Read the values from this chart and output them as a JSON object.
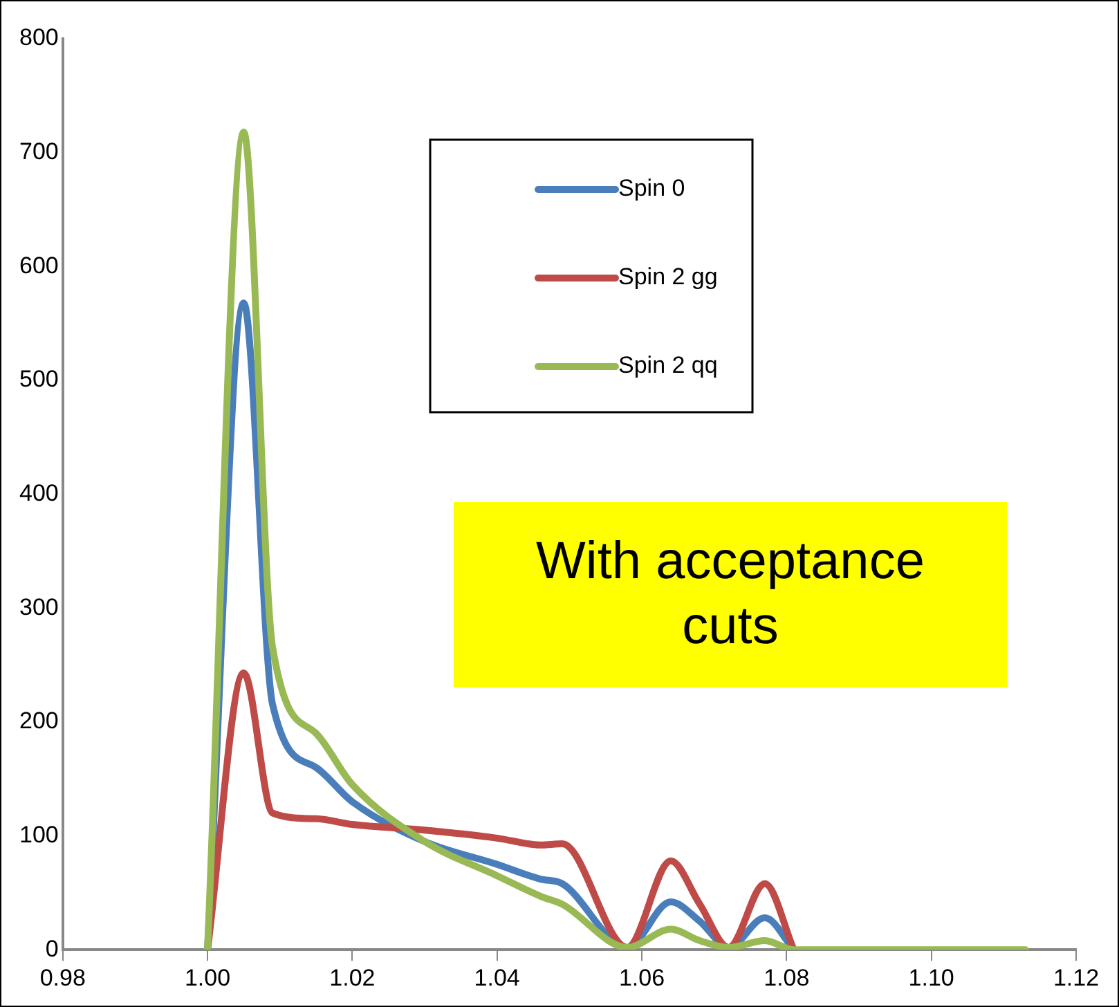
{
  "chart_data": {
    "type": "line",
    "annotations": [
      "With acceptance cuts"
    ],
    "legend": "top",
    "grid": false,
    "marker": "none",
    "line_style": "solid",
    "xlim": [
      0.98,
      1.12
    ],
    "xticks": [
      {
        "value": 0.98,
        "label": "0.98"
      },
      {
        "value": 1,
        "label": "1.00"
      },
      {
        "value": 1.02,
        "label": "1.02"
      },
      {
        "value": 1.04,
        "label": "1.04"
      },
      {
        "value": 1.06,
        "label": "1.06"
      },
      {
        "value": 1.08,
        "label": "1.08"
      },
      {
        "value": 1.1,
        "label": "1.10"
      },
      {
        "value": 1.12,
        "label": "1.12"
      }
    ],
    "ylim": [
      0,
      800
    ],
    "yticks": [
      0,
      100,
      200,
      300,
      400,
      500,
      600,
      700,
      800
    ],
    "x": [
      1.0,
      1.005,
      1.009,
      1.015,
      1.02,
      1.03,
      1.04,
      1.046,
      1.049,
      1.058,
      1.064,
      1.068,
      1.072,
      1.077,
      1.081,
      1.09,
      1.1,
      1.113
    ],
    "series": [
      {
        "name": "Spin 0",
        "color": "#4a7ebb",
        "values": [
          0,
          568,
          215,
          160,
          130,
          95,
          75,
          62,
          58,
          2,
          42,
          25,
          2,
          28,
          0,
          null,
          null,
          null
        ]
      },
      {
        "name": "Spin 2 gg",
        "color": "#be4b48",
        "values": [
          0,
          243,
          120,
          115,
          110,
          105,
          98,
          92,
          93,
          2,
          78,
          40,
          2,
          58,
          0,
          null,
          null,
          null
        ]
      },
      {
        "name": "Spin 2 qq",
        "color": "#98b954",
        "values": [
          0,
          718,
          265,
          190,
          145,
          95,
          65,
          47,
          40,
          2,
          18,
          8,
          2,
          8,
          0,
          0,
          0,
          0
        ]
      }
    ]
  }
}
